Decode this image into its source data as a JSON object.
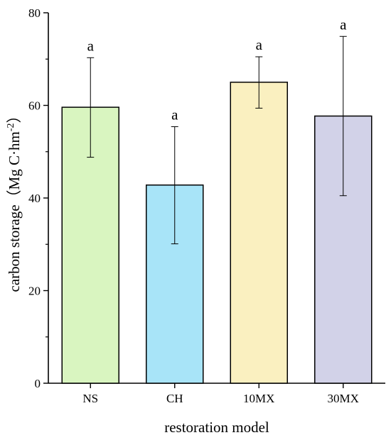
{
  "chart_data": {
    "type": "bar",
    "categories": [
      "NS",
      "CH",
      "10MX",
      "30MX"
    ],
    "values": [
      59.6,
      42.8,
      65.0,
      57.7
    ],
    "error_low": [
      48.8,
      30.1,
      59.4,
      40.5
    ],
    "error_high": [
      70.3,
      55.4,
      70.5,
      74.9
    ],
    "significance_labels": [
      "a",
      "a",
      "a",
      "a"
    ],
    "bar_colors": [
      "#d9f5c0",
      "#a8e4f8",
      "#faf0c0",
      "#d2d2e8"
    ],
    "xlabel": "restoration model",
    "ylabel_main": "carbon storage（Mg C·hm",
    "ylabel_sup": "-2",
    "ylabel_close": "）",
    "ylim": [
      0,
      80
    ],
    "yticks": [
      0,
      20,
      40,
      60,
      80
    ],
    "grid": false
  }
}
